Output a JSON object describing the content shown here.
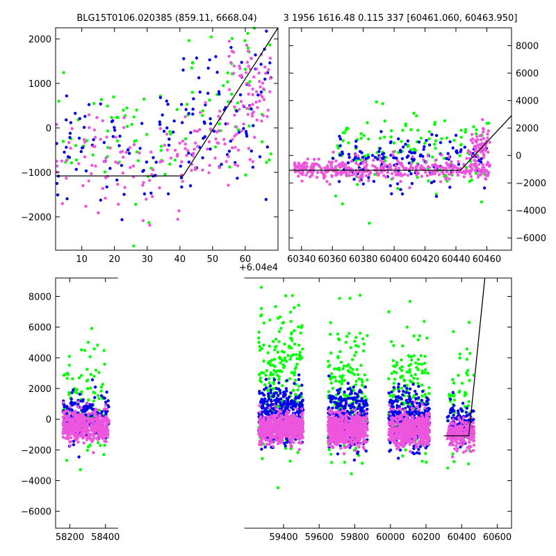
{
  "colors": {
    "blue": "#0000ee",
    "green": "#00ff00",
    "magenta": "#ee55dd",
    "model": "#000000"
  },
  "chart_data": [
    {
      "id": "top-left",
      "type": "scatter",
      "title": "BLG15T0106.020385 (859.11, 6668.04)",
      "xlim": [
        2,
        70
      ],
      "ylim": [
        -2750,
        2250
      ],
      "x_ticks": [
        10,
        20,
        30,
        40,
        50,
        60
      ],
      "x_tick_labels": [
        "10",
        "20",
        "30",
        "40",
        "50",
        "60"
      ],
      "x_offset_label": "+6.04e4",
      "y_ticks": [
        -2000,
        -1000,
        0,
        1000,
        2000
      ],
      "y_tick_labels": [
        "−2000",
        "−1000",
        "0",
        "1000",
        "2000"
      ],
      "y_axis_side": "left",
      "model": [
        [
          2,
          -1080
        ],
        [
          41,
          -1080
        ],
        [
          70,
          2250
        ]
      ],
      "series": [
        {
          "color_key": "green",
          "seed": 11,
          "groups": [
            {
              "x": [
                2,
                40
              ],
              "y_mean": -200,
              "y_sd": 650,
              "n": 55
            },
            {
              "x": [
                40,
                68
              ],
              "y_mean": 600,
              "y_sd": 900,
              "n": 50
            }
          ]
        },
        {
          "color_key": "blue",
          "seed": 23,
          "groups": [
            {
              "x": [
                2,
                40
              ],
              "y_mean": -500,
              "y_sd": 700,
              "n": 70
            },
            {
              "x": [
                40,
                68
              ],
              "y_mean": 300,
              "y_sd": 900,
              "n": 80
            }
          ]
        },
        {
          "color_key": "magenta",
          "seed": 37,
          "groups": [
            {
              "x": [
                2,
                42
              ],
              "y_mean": -700,
              "y_sd": 550,
              "n": 90
            },
            {
              "x": [
                42,
                58
              ],
              "y_mean": -300,
              "y_sd": 500,
              "n": 50
            },
            {
              "x": [
                55,
                68
              ],
              "y_mean": 900,
              "y_sd": 600,
              "n": 70
            }
          ]
        }
      ]
    },
    {
      "id": "top-right",
      "type": "scatter",
      "title": "3 1956 1616.48 0.115 337 [60461.060, 60463.950]",
      "xlim": [
        60332,
        60476
      ],
      "ylim": [
        -6900,
        9300
      ],
      "x_ticks": [
        60340,
        60360,
        60380,
        60400,
        60420,
        60440,
        60460
      ],
      "x_tick_labels": [
        "60340",
        "60360",
        "60380",
        "60400",
        "60420",
        "60440",
        "60460"
      ],
      "y_ticks": [
        -6000,
        -4000,
        -2000,
        0,
        2000,
        4000,
        6000,
        8000
      ],
      "y_tick_labels": [
        "−6000",
        "−4000",
        "−2000",
        "0",
        "2000",
        "4000",
        "6000",
        "8000"
      ],
      "y_axis_side": "right",
      "model": [
        [
          60332,
          -1080
        ],
        [
          60443,
          -1080
        ],
        [
          60476,
          2900
        ]
      ],
      "series": [
        {
          "color_key": "green",
          "seed": 41,
          "groups": [
            {
              "x": [
                60360,
                60462
              ],
              "y_mean": 200,
              "y_sd": 1400,
              "n": 140
            }
          ]
        },
        {
          "color_key": "blue",
          "seed": 53,
          "groups": [
            {
              "x": [
                60360,
                60462
              ],
              "y_mean": -400,
              "y_sd": 900,
              "n": 150
            }
          ]
        },
        {
          "color_key": "magenta",
          "seed": 67,
          "groups": [
            {
              "x": [
                60335,
                60462
              ],
              "y_mean": -1000,
              "y_sd": 380,
              "n": 380
            },
            {
              "x": [
                60448,
                60462
              ],
              "y_mean": 700,
              "y_sd": 600,
              "n": 60
            }
          ]
        }
      ]
    },
    {
      "id": "bottom",
      "type": "scatter",
      "title": "",
      "xlim": [
        58120,
        60680
      ],
      "ylim": [
        -7100,
        9200
      ],
      "x_ticks": [
        58200,
        58400,
        59400,
        59600,
        59800,
        60000,
        60200,
        60400,
        60600
      ],
      "x_tick_labels": [
        "58200",
        "58400",
        "59400",
        "59600",
        "59800",
        "60000",
        "60200",
        "60400",
        "60600"
      ],
      "x_break_segments": [
        [
          58120,
          58470
        ],
        [
          59180,
          60680
        ]
      ],
      "y_ticks": [
        -6000,
        -4000,
        -2000,
        0,
        2000,
        4000,
        6000,
        8000
      ],
      "y_tick_labels": [
        "−6000",
        "−4000",
        "−2000",
        "0",
        "2000",
        "4000",
        "6000",
        "8000"
      ],
      "y_axis_side": "left",
      "model": [
        [
          60300,
          -1080
        ],
        [
          60440,
          -1080
        ],
        [
          60530,
          9200
        ]
      ],
      "series": [
        {
          "color_key": "green",
          "seed": 71,
          "groups": [
            {
              "x": [
                58160,
                58420
              ],
              "y_mean": 1500,
              "y_sd": 2000,
              "n": 90
            },
            {
              "x": [
                59260,
                59510
              ],
              "y_mean": 2600,
              "y_sd": 2400,
              "n": 220
            },
            {
              "x": [
                59650,
                59870
              ],
              "y_mean": 1800,
              "y_sd": 2200,
              "n": 170
            },
            {
              "x": [
                59990,
                60220
              ],
              "y_mean": 1800,
              "y_sd": 2200,
              "n": 170
            },
            {
              "x": [
                60320,
                60470
              ],
              "y_mean": 900,
              "y_sd": 1900,
              "n": 60
            }
          ]
        },
        {
          "color_key": "blue",
          "seed": 83,
          "groups": [
            {
              "x": [
                58160,
                58420
              ],
              "y_mean": 200,
              "y_sd": 750,
              "n": 220
            },
            {
              "x": [
                59260,
                59510
              ],
              "y_mean": 300,
              "y_sd": 950,
              "n": 380
            },
            {
              "x": [
                59650,
                59870
              ],
              "y_mean": 100,
              "y_sd": 950,
              "n": 320
            },
            {
              "x": [
                59990,
                60220
              ],
              "y_mean": 0,
              "y_sd": 950,
              "n": 320
            },
            {
              "x": [
                60320,
                60470
              ],
              "y_mean": -300,
              "y_sd": 700,
              "n": 110
            }
          ]
        },
        {
          "color_key": "magenta",
          "seed": 97,
          "groups": [
            {
              "x": [
                58160,
                58420
              ],
              "y_mean": -500,
              "y_sd": 480,
              "n": 450
            },
            {
              "x": [
                59260,
                59510
              ],
              "y_mean": -600,
              "y_sd": 480,
              "n": 650
            },
            {
              "x": [
                59650,
                59870
              ],
              "y_mean": -700,
              "y_sd": 520,
              "n": 520
            },
            {
              "x": [
                59990,
                60220
              ],
              "y_mean": -700,
              "y_sd": 520,
              "n": 520
            },
            {
              "x": [
                60320,
                60470
              ],
              "y_mean": -1000,
              "y_sd": 450,
              "n": 220
            }
          ]
        }
      ]
    }
  ]
}
